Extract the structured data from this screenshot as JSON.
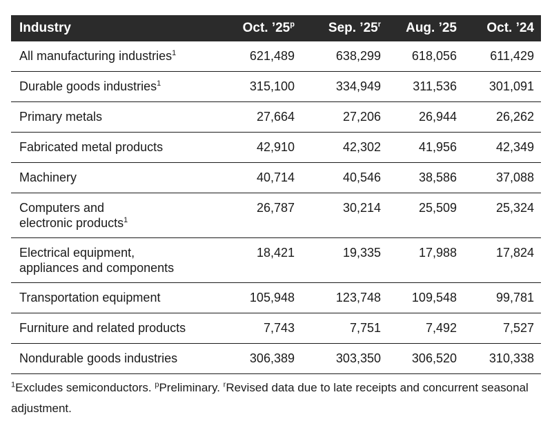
{
  "header": {
    "industry": "Industry",
    "col1": "Oct. ’25",
    "col1_sup": "p",
    "col2": "Sep. ’25",
    "col2_sup": "r",
    "col3": "Aug. ’25",
    "col4": "Oct. ’24"
  },
  "rows": [
    {
      "line1": "All manufacturing industries",
      "sup": "1",
      "v1": "621,489",
      "v2": "638,299",
      "v3": "618,056",
      "v4": "611,429"
    },
    {
      "line1": "Durable goods industries",
      "sup": "1",
      "v1": "315,100",
      "v2": "334,949",
      "v3": "311,536",
      "v4": "301,091"
    },
    {
      "line1": "Primary metals",
      "v1": "27,664",
      "v2": "27,206",
      "v3": "26,944",
      "v4": "26,262"
    },
    {
      "line1": "Fabricated metal products",
      "v1": "42,910",
      "v2": "42,302",
      "v3": "41,956",
      "v4": "42,349"
    },
    {
      "line1": "Machinery",
      "v1": "40,714",
      "v2": "40,546",
      "v3": "38,586",
      "v4": "37,088"
    },
    {
      "line1": "Computers and",
      "line2": "electronic products",
      "sup": "1",
      "v1": "26,787",
      "v2": "30,214",
      "v3": "25,509",
      "v4": "25,324"
    },
    {
      "line1": "Electrical equipment,",
      "line2": "appliances and components",
      "v1": "18,421",
      "v2": "19,335",
      "v3": "17,988",
      "v4": "17,824"
    },
    {
      "line1": "Transportation equipment",
      "v1": "105,948",
      "v2": "123,748",
      "v3": "109,548",
      "v4": "99,781"
    },
    {
      "line1": "Furniture and related products",
      "v1": "7,743",
      "v2": "7,751",
      "v3": "7,492",
      "v4": "7,527"
    },
    {
      "line1": "Nondurable goods industries",
      "v1": "306,389",
      "v2": "303,350",
      "v3": "306,520",
      "v4": "310,338"
    }
  ],
  "footnote": {
    "sup1": "1",
    "text1": "Excludes semiconductors. ",
    "sup2": "p",
    "text2": "Preliminary. ",
    "sup3": "r",
    "text3": "Revised data due to late receipts and concurrent seasonal adjustment."
  }
}
